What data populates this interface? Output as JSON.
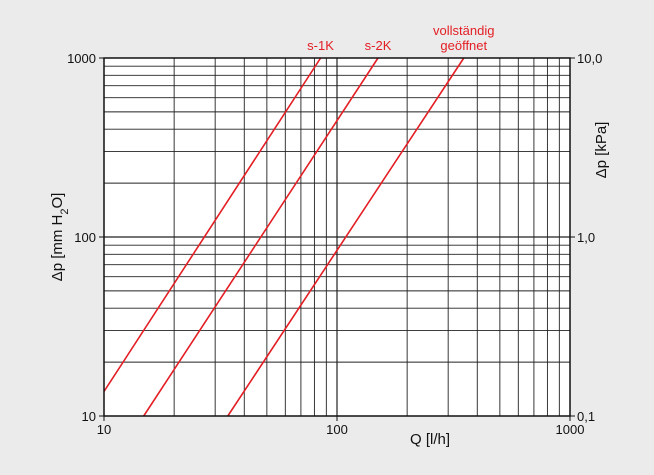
{
  "chart_data": {
    "type": "line",
    "x_scale": "log",
    "y_scale": "log",
    "xlim": [
      10,
      1000
    ],
    "ylim": [
      10,
      1000
    ],
    "xlabel": "Q [l/h]",
    "ylabel_parts": [
      "Δp [mm H",
      "2",
      "O]"
    ],
    "ylabel_right": "Δp [kPa]",
    "x_ticks": [
      {
        "value": 10,
        "label": "10"
      },
      {
        "value": 100,
        "label": "100"
      },
      {
        "value": 1000,
        "label": "1000"
      }
    ],
    "y_ticks": [
      {
        "value": 10,
        "label": "10"
      },
      {
        "value": 100,
        "label": "100"
      },
      {
        "value": 1000,
        "label": "1000"
      }
    ],
    "y_ticks_right": [
      {
        "value": 10,
        "label": "0,1"
      },
      {
        "value": 100,
        "label": "1,0"
      },
      {
        "value": 1000,
        "label": "10,0"
      }
    ],
    "grid": true,
    "line_color": "#e31e24",
    "series": [
      {
        "name": "s-1K",
        "label_lines": [
          "s-1K"
        ],
        "x": [
          10,
          85
        ],
        "y": [
          13.7,
          1000
        ]
      },
      {
        "name": "s-2K",
        "label_lines": [
          "s-2K"
        ],
        "x": [
          14.8,
          150
        ],
        "y": [
          10,
          1000
        ]
      },
      {
        "name": "vollständig geöffnet",
        "label_lines": [
          "vollständig",
          "geöffnet"
        ],
        "x": [
          34,
          350
        ],
        "y": [
          10,
          1000
        ]
      }
    ]
  }
}
